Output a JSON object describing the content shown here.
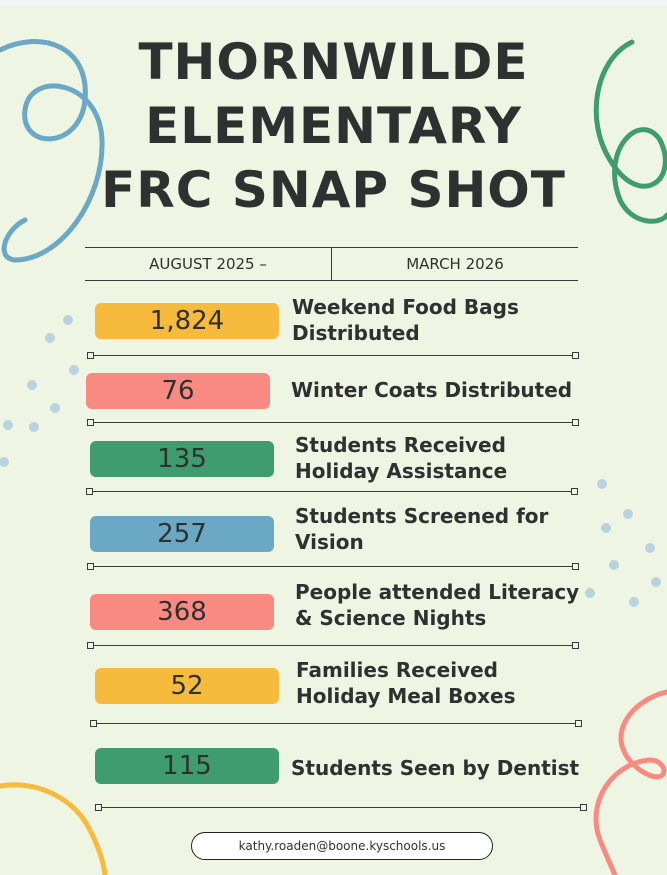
{
  "title": {
    "line1": "THORNWILDE",
    "line2": "ELEMENTARY",
    "line3": "FRC SNAP SHOT"
  },
  "period": {
    "start": "AUGUST 2025 –",
    "end": "MARCH 2026"
  },
  "stats": [
    {
      "value": "1,824",
      "label": "Weekend Food Bags Distributed",
      "color": "#f6bb3c"
    },
    {
      "value": "76",
      "label": "Winter Coats Distributed",
      "color": "#f98a82"
    },
    {
      "value": "135",
      "label": "Students Received Holiday Assistance",
      "color": "#3e9c6e"
    },
    {
      "value": "257",
      "label": "Students Screened for Vision",
      "color": "#6aa8c6"
    },
    {
      "value": "368",
      "label": "People attended Literacy & Science Nights",
      "color": "#f98a82"
    },
    {
      "value": "52",
      "label": "Families Received Holiday Meal Boxes",
      "color": "#f6bb3c"
    },
    {
      "value": "115",
      "label": "Students Seen by Dentist",
      "color": "#3e9c6e"
    }
  ],
  "contact": {
    "email": "kathy.roaden@boone.kyschools.us"
  },
  "colors": {
    "background": "#eef5e2",
    "text": "#2f3130",
    "yellow": "#f6bb3c",
    "coral": "#f98a82",
    "green": "#3e9c6e",
    "blue": "#6aa8c6"
  }
}
